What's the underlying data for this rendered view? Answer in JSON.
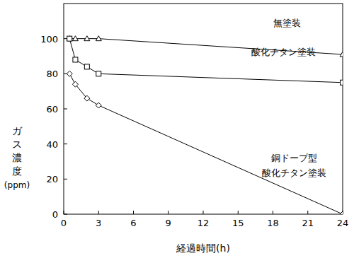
{
  "chart_data": {
    "type": "line",
    "x_label": "経過時間(h)",
    "y_label": "ガス濃度(ppm)",
    "xlim": [
      0,
      24
    ],
    "xticks": [
      0,
      3,
      6,
      9,
      12,
      15,
      18,
      21,
      24
    ],
    "ylim": [
      0,
      120
    ],
    "yticks": [
      0,
      20,
      40,
      60,
      80,
      100
    ],
    "grid": false,
    "series": [
      {
        "name": "無塗装",
        "color": "#000000",
        "marker": "triangle",
        "line_style": "solid",
        "x": [
          0.5,
          1,
          2,
          3,
          24
        ],
        "values": [
          100,
          100,
          100,
          100,
          91
        ]
      },
      {
        "name": "酸化チタン塗装",
        "color": "#000000",
        "marker": "square",
        "line_style": "solid",
        "x": [
          0.5,
          1,
          2,
          3,
          24
        ],
        "values": [
          100,
          88,
          84,
          80,
          75
        ]
      },
      {
        "name": "銅ドープ型\n酸化チタン塗装",
        "color": "#000000",
        "marker": "diamond",
        "line_style": "solid",
        "x": [
          0.5,
          1,
          2,
          3,
          24
        ],
        "values": [
          80,
          74,
          66,
          62,
          0
        ]
      }
    ]
  }
}
